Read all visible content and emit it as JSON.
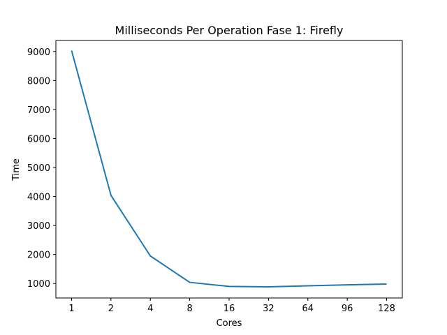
{
  "chart_data": {
    "type": "line",
    "title": "Milliseconds Per Operation Fase 1: Firefly",
    "xlabel": "Cores",
    "ylabel": "Time",
    "categories": [
      "1",
      "2",
      "4",
      "8",
      "16",
      "32",
      "64",
      "96",
      "128"
    ],
    "series": [
      {
        "values": [
          9030,
          4040,
          1950,
          1040,
          900,
          885,
          920,
          955,
          980
        ],
        "color": "#1f77b4"
      }
    ],
    "ylim": [
      500,
      9380
    ],
    "yticks": [
      1000,
      2000,
      3000,
      4000,
      5000,
      6000,
      7000,
      8000,
      9000
    ],
    "grid": false,
    "legend": "none"
  }
}
